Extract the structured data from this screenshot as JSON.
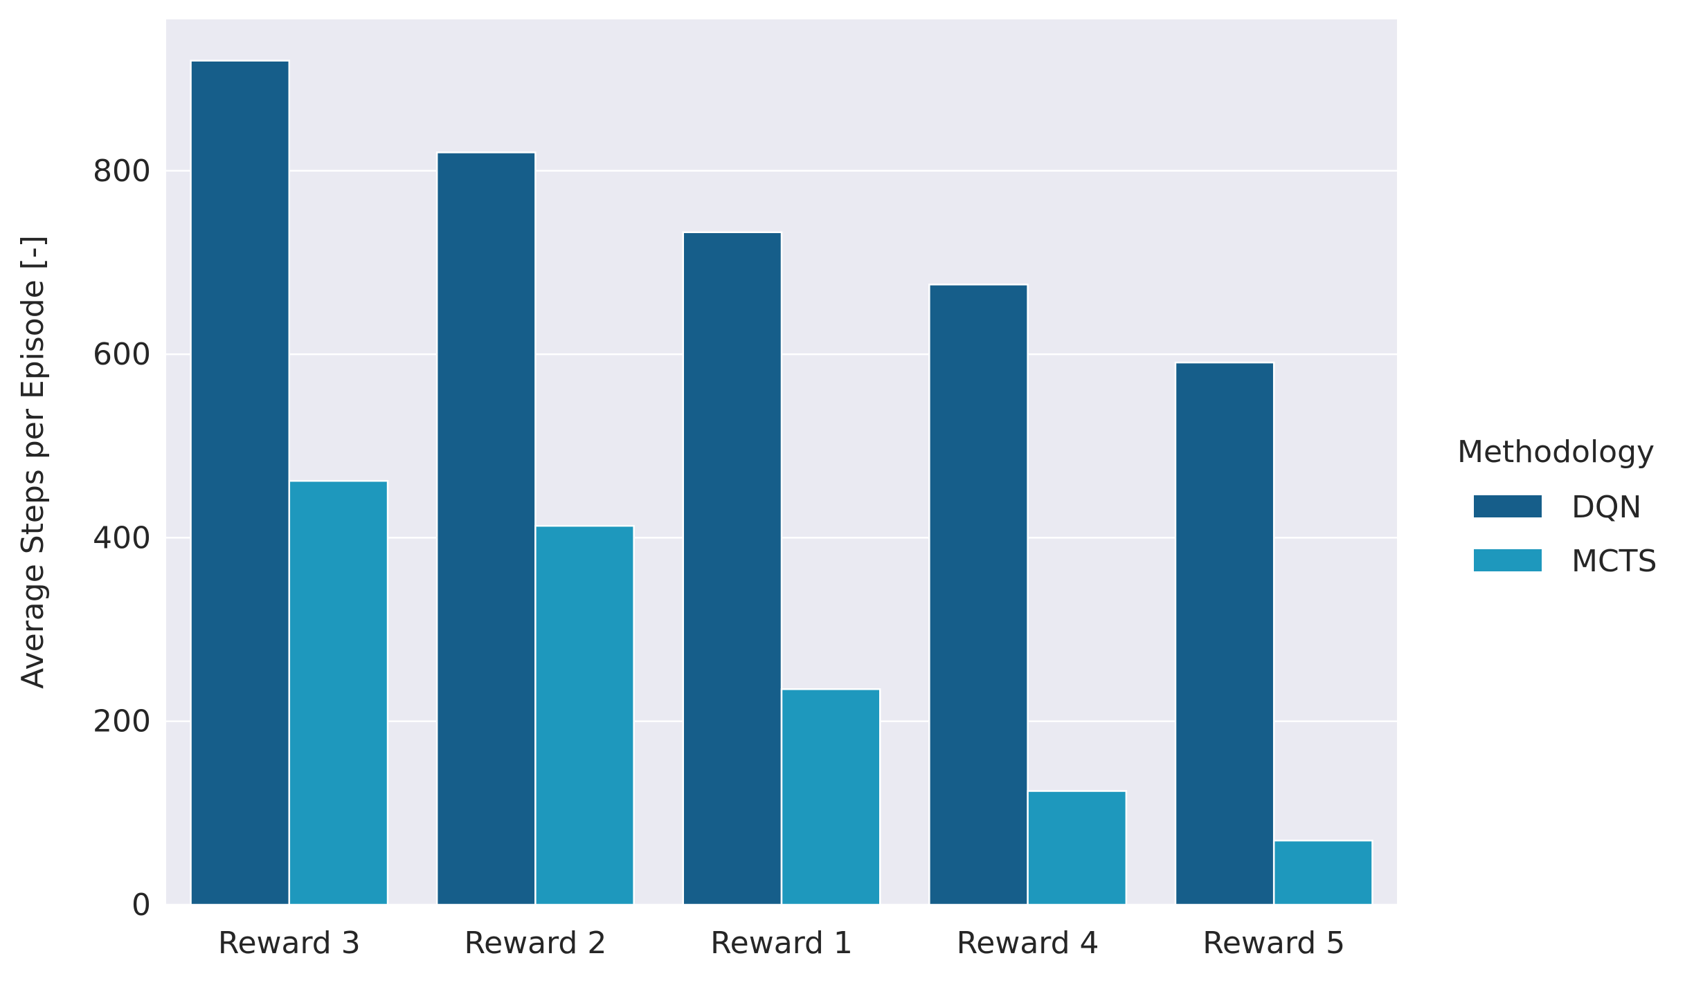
{
  "chart_data": {
    "type": "bar",
    "title": "",
    "xlabel": "",
    "ylabel": "Average Steps per Episode [-]",
    "categories": [
      "Reward 3",
      "Reward 2",
      "Reward 1",
      "Reward 4",
      "Reward 5"
    ],
    "series": [
      {
        "name": "DQN",
        "values": [
          920,
          820,
          733,
          676,
          591
        ],
        "color": "#165e8a"
      },
      {
        "name": "MCTS",
        "values": [
          462,
          413,
          235,
          124,
          70
        ],
        "color": "#1e98bd"
      }
    ],
    "ylim": [
      0,
      965
    ],
    "yticks": [
      "0",
      "200",
      "400",
      "600",
      "800"
    ],
    "grid": true,
    "background": "#eaeaf2",
    "legend": {
      "title": "Methodology",
      "placement": "outside-right"
    }
  }
}
